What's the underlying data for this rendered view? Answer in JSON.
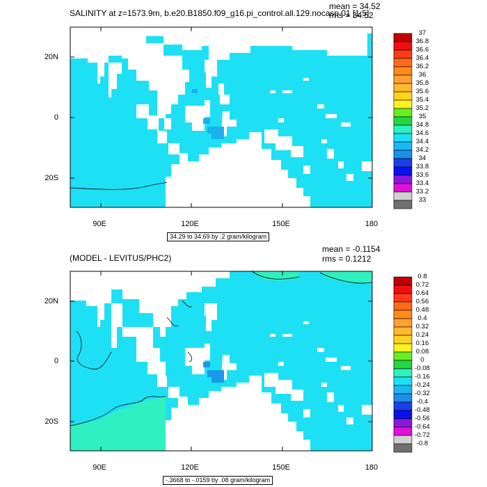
{
  "top_panel": {
    "title": "SALINITY at z=1573.9m, b.e20.B1850.f09_g16.pi_control.all.129.nocasp.01 [1:5]",
    "mean_label": "mean = 34.52",
    "rms_label": "rms = 34.52",
    "info_box": "34.29 to 34.69 by .2 gram/kilogram",
    "colorbar_labels": [
      "37",
      "36.8",
      "36.6",
      "36.4",
      "36.2",
      "36",
      "35.8",
      "35.6",
      "35.4",
      "35.2",
      "35",
      "34.8",
      "34.6",
      "34.4",
      "34.2",
      "34",
      "33.8",
      "33.6",
      "33.4",
      "33.2",
      "33"
    ]
  },
  "bottom_panel": {
    "title": "(MODEL - LEVITUS/PHC2)",
    "mean_label": "mean = -0.1154",
    "rms_label": "rms = 0.1212",
    "info_box": "-.3668 to -.0159 by .08 gram/kilogram",
    "colorbar_labels": [
      "0.8",
      "0.72",
      "0.64",
      "0.56",
      "0.48",
      "0.4",
      "0.32",
      "0.24",
      "0.16",
      "0.08",
      "0",
      "-0.08",
      "-0.16",
      "-0.24",
      "-0.32",
      "-0.4",
      "-0.48",
      "-0.56",
      "-0.64",
      "-0.72",
      "-0.8"
    ]
  },
  "axes": {
    "x_ticks": [
      "90E",
      "120E",
      "150E",
      "180"
    ],
    "y_ticks": [
      "20N",
      "0",
      "20S"
    ]
  },
  "colors": {
    "land": "#ffffff",
    "ocean_top": "#1ee0f5",
    "ocean_top_low": "#1ab0ee",
    "ocean_bottom": "#1ee0f5",
    "ocean_bottom_green": "#2ef0c0",
    "ocean_bottom_dark": "#1a9ae6",
    "colorbar_swatches": [
      "#c00000",
      "#ee1010",
      "#ff3a1a",
      "#ff6a1a",
      "#ff8c1a",
      "#ffa030",
      "#ffb830",
      "#ffd420",
      "#fff020",
      "#66ee22",
      "#22d840",
      "#2ef0c0",
      "#1ee0f5",
      "#1ab8f0",
      "#1a90e6",
      "#1a40e8",
      "#0a10f0",
      "#8a18d8",
      "#e010d8",
      "#d0d0d0",
      "#707070"
    ]
  }
}
